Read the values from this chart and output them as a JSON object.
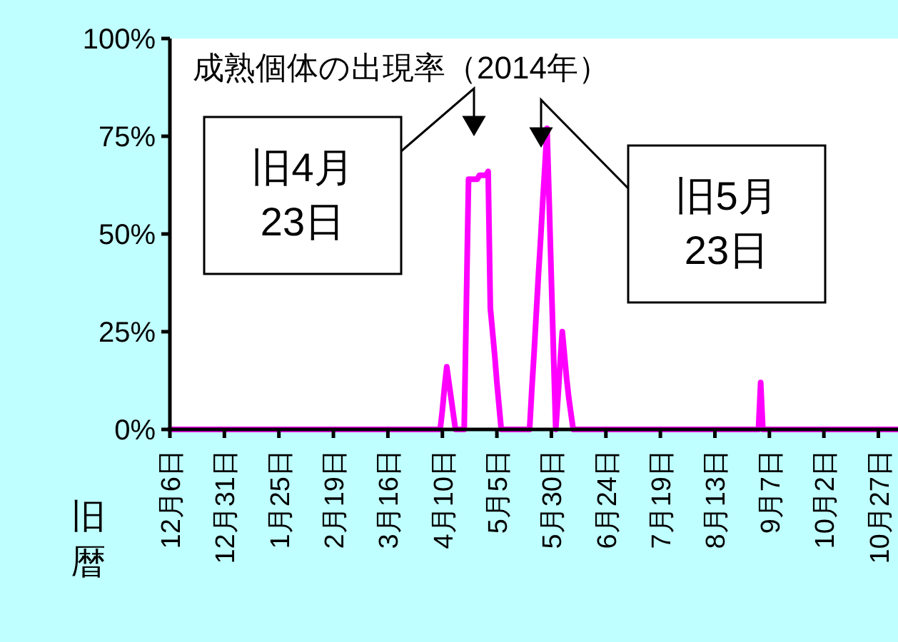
{
  "chart_data": {
    "type": "line",
    "title": "成熟個体の出現率（2014年）",
    "xlabel": "旧暦",
    "categories": [
      "12月6日",
      null,
      null,
      null,
      null,
      null,
      null,
      null,
      null,
      null,
      null,
      null,
      null,
      null,
      null,
      null,
      null,
      null,
      null,
      null,
      null,
      null,
      null,
      null,
      null,
      "12月31日",
      null,
      null,
      null,
      null,
      null,
      null,
      null,
      null,
      null,
      null,
      null,
      null,
      null,
      null,
      null,
      null,
      null,
      null,
      null,
      null,
      null,
      null,
      null,
      null,
      "1月25日",
      null,
      null,
      null,
      null,
      null,
      null,
      null,
      null,
      null,
      null,
      null,
      null,
      null,
      null,
      null,
      null,
      null,
      null,
      null,
      null,
      null,
      null,
      null,
      null,
      "2月19日",
      null,
      null,
      null,
      null,
      null,
      null,
      null,
      null,
      null,
      null,
      null,
      null,
      null,
      null,
      null,
      null,
      null,
      null,
      null,
      null,
      null,
      null,
      null,
      null,
      "3月16日",
      null,
      null,
      null,
      null,
      null,
      null,
      null,
      null,
      null,
      null,
      null,
      null,
      null,
      null,
      null,
      null,
      null,
      null,
      null,
      null,
      null,
      null,
      null,
      null,
      "4月10日",
      null,
      null,
      null,
      null,
      null,
      null,
      null,
      null,
      null,
      null,
      null,
      null,
      null,
      null,
      null,
      null,
      null,
      null,
      null,
      null,
      null,
      null,
      null,
      null,
      "5月5日",
      null,
      null,
      null,
      null,
      null,
      null,
      null,
      null,
      null,
      null,
      null,
      null,
      null,
      null,
      null,
      null,
      null,
      null,
      null,
      null,
      null,
      null,
      null,
      null,
      "5月30日",
      null,
      null,
      null,
      null,
      null,
      null,
      null,
      null,
      null,
      null,
      null,
      null,
      null,
      null,
      null,
      null,
      null,
      null,
      null,
      null,
      null,
      null,
      null,
      null,
      "6月24日",
      null,
      null,
      null,
      null,
      null,
      null,
      null,
      null,
      null,
      null,
      null,
      null,
      null,
      null,
      null,
      null,
      null,
      null,
      null,
      null,
      null,
      null,
      null,
      null,
      "7月19日",
      null,
      null,
      null,
      null,
      null,
      null,
      null,
      null,
      null,
      null,
      null,
      null,
      null,
      null,
      null,
      null,
      null,
      null,
      null,
      null,
      null,
      null,
      null,
      null,
      "8月13日",
      null,
      null,
      null,
      null,
      null,
      null,
      null,
      null,
      null,
      null,
      null,
      null,
      null,
      null,
      null,
      null,
      null,
      null,
      null,
      null,
      null,
      null,
      null,
      null,
      "9月7日",
      null,
      null,
      null,
      null,
      null,
      null,
      null,
      null,
      null,
      null,
      null,
      null,
      null,
      null,
      null,
      null,
      null,
      null,
      null,
      null,
      null,
      null,
      null,
      null,
      "10月2日",
      null,
      null,
      null,
      null,
      null,
      null,
      null,
      null,
      null,
      null,
      null,
      null,
      null,
      null,
      null,
      null,
      null,
      null,
      null,
      null,
      null,
      null,
      null,
      null,
      "10月27日",
      null,
      null,
      null,
      null,
      null,
      null,
      null,
      null,
      null
    ],
    "series": [
      {
        "color": "#ff00ff",
        "values": [
          0,
          0,
          0,
          0,
          0,
          0,
          0,
          0,
          0,
          0,
          0,
          0,
          0,
          0,
          0,
          0,
          0,
          0,
          0,
          0,
          0,
          0,
          0,
          0,
          0,
          0,
          0,
          0,
          0,
          0,
          0,
          0,
          0,
          0,
          0,
          0,
          0,
          0,
          0,
          0,
          0,
          0,
          0,
          0,
          0,
          0,
          0,
          0,
          0,
          0,
          0,
          0,
          0,
          0,
          0,
          0,
          0,
          0,
          0,
          0,
          0,
          0,
          0,
          0,
          0,
          0,
          0,
          0,
          0,
          0,
          0,
          0,
          0,
          0,
          0,
          0,
          0,
          0,
          0,
          0,
          0,
          0,
          0,
          0,
          0,
          0,
          0,
          0,
          0,
          0,
          0,
          0,
          0,
          0,
          0,
          0,
          0,
          0,
          0,
          0,
          0,
          0,
          0,
          0,
          0,
          0,
          0,
          0,
          0,
          0,
          0,
          0,
          0,
          0,
          0,
          0,
          0,
          0,
          0,
          0,
          0,
          0,
          0,
          0,
          0,
          5,
          11,
          16,
          12,
          8,
          4,
          0,
          0,
          0,
          0,
          0,
          32,
          64,
          64,
          64,
          64,
          64,
          65,
          65,
          65,
          65,
          66,
          31,
          25,
          19,
          12,
          6,
          0,
          0,
          0,
          0,
          0,
          0,
          0,
          0,
          0,
          0,
          0,
          0,
          0,
          0,
          10,
          19,
          29,
          39,
          48,
          58,
          67,
          77,
          58,
          38,
          19,
          0,
          8,
          17,
          25,
          19,
          13,
          8,
          4,
          0,
          0,
          0,
          0,
          0,
          0,
          0,
          0,
          0,
          0,
          0,
          0,
          0,
          0,
          0,
          0,
          0,
          0,
          0,
          0,
          0,
          0,
          0,
          0,
          0,
          0,
          0,
          0,
          0,
          0,
          0,
          0,
          0,
          0,
          0,
          0,
          0,
          0,
          0,
          0,
          0,
          0,
          0,
          0,
          0,
          0,
          0,
          0,
          0,
          0,
          0,
          0,
          0,
          0,
          0,
          0,
          0,
          0,
          0,
          0,
          0,
          0,
          0,
          0,
          0,
          0,
          0,
          0,
          0,
          0,
          0,
          0,
          0,
          0,
          0,
          0,
          0,
          0,
          0,
          0,
          0,
          0,
          0,
          0,
          0,
          0,
          12,
          0,
          0,
          0,
          0,
          0,
          0,
          0,
          0,
          0,
          0,
          0,
          0,
          0,
          0,
          0,
          0,
          0,
          0,
          0,
          0,
          0,
          0,
          0,
          0,
          0,
          0,
          0,
          0,
          0,
          0,
          0,
          0,
          0,
          0,
          0,
          0,
          0,
          0,
          0,
          0,
          0,
          0,
          0,
          0,
          0,
          0,
          0,
          0,
          0,
          0,
          0,
          0,
          0,
          0,
          0,
          0,
          0,
          0,
          0,
          0,
          0,
          0,
          0
        ]
      }
    ],
    "ylim": [
      0,
      100
    ],
    "yticks": [
      {
        "value": 0,
        "label": "0%"
      },
      {
        "value": 25,
        "label": "25%"
      },
      {
        "value": 50,
        "label": "50%"
      },
      {
        "value": 75,
        "label": "75%"
      },
      {
        "value": 100,
        "label": "100%"
      }
    ],
    "annotations": [
      "旧4月\n23日",
      "旧5月\n23日"
    ]
  }
}
